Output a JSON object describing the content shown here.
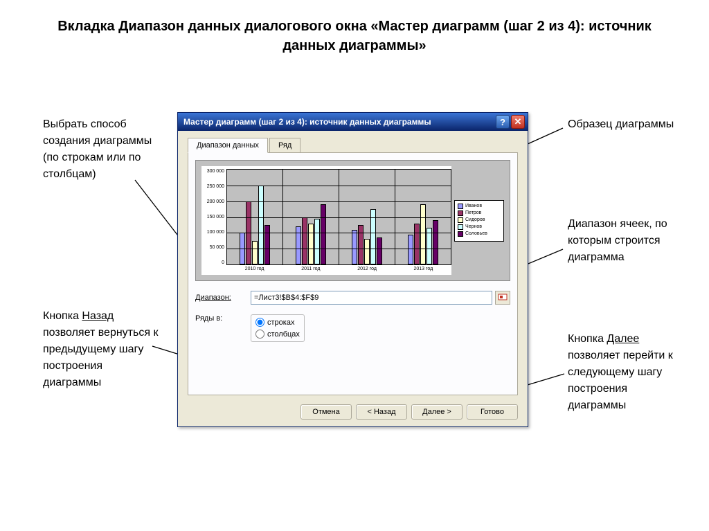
{
  "page_title": "Вкладка Диапазон данных диалогового окна «Мастер диаграмм (шаг 2 из 4): источник данных диаграммы»",
  "annotations": {
    "top_left": "Выбрать способ создания диаграммы (по строкам или по столбцам)",
    "top_right": "Образец диаграммы",
    "mid_right": "Диапазон ячеек, по которым строится диаграмма",
    "bottom_left": "Кнопка Назад позволяет вернуться к предыдущему шагу построения диаграммы",
    "bottom_right": "Кнопка Далее позволяет перейти к следующему шагу построения диаграммы"
  },
  "dialog": {
    "title": "Мастер диаграмм (шаг 2 из 4): источник данных диаграммы",
    "tabs": {
      "data_range": "Диапазон данных",
      "series": "Ряд"
    },
    "range_label": "Диапазон:",
    "range_value": "=Лист3!$B$4:$F$9",
    "rows_in_label": "Ряды в:",
    "radio_rows": "строках",
    "radio_cols": "столбцах",
    "buttons": {
      "cancel": "Отмена",
      "back": "< Назад",
      "next": "Далее >",
      "finish": "Готово"
    }
  },
  "chart": {
    "type": "bar",
    "ylim": [
      0,
      300000
    ],
    "ytick_step": 50000,
    "y_ticks": [
      "0",
      "50 000",
      "100 000",
      "150 000",
      "200 000",
      "250 000",
      "300 000"
    ],
    "categories": [
      "2010 год",
      "2011 год",
      "2012 год",
      "2013 год"
    ],
    "series": [
      {
        "name": "Иванов",
        "color": "#9999ff",
        "values": [
          100000,
          120000,
          110000,
          95000
        ]
      },
      {
        "name": "Петров",
        "color": "#993366",
        "values": [
          200000,
          150000,
          125000,
          130000
        ]
      },
      {
        "name": "Сидоров",
        "color": "#ffffcc",
        "values": [
          75000,
          130000,
          80000,
          190000
        ]
      },
      {
        "name": "Чернов",
        "color": "#ccffff",
        "values": [
          250000,
          145000,
          175000,
          115000
        ]
      },
      {
        "name": "Соловьев",
        "color": "#660066",
        "values": [
          125000,
          190000,
          85000,
          140000
        ]
      }
    ],
    "background_color": "#c0c0c0",
    "plot_bg": "#c0c0c0",
    "grid_color": "#000000"
  }
}
